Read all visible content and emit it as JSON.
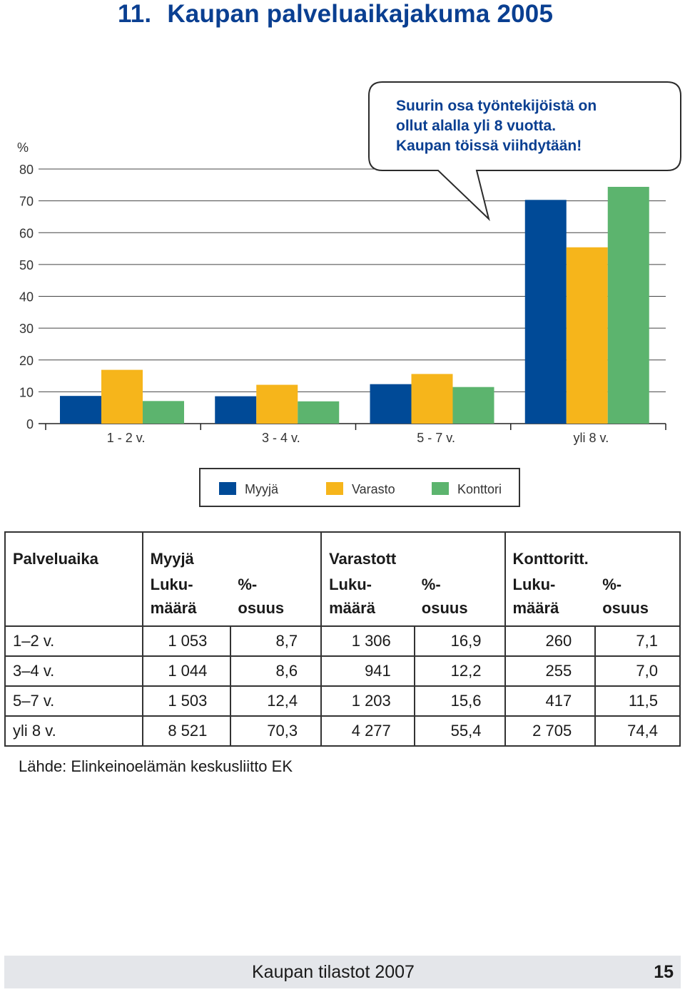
{
  "header": {
    "number": "11.",
    "title": "Kaupan palveluaikajakuma 2005"
  },
  "chart_data": {
    "type": "bar",
    "ylabel": "%",
    "ylim": [
      0,
      80
    ],
    "yticks": [
      0,
      10,
      20,
      30,
      40,
      50,
      60,
      70,
      80
    ],
    "grid": true,
    "categories": [
      "1 - 2 v.",
      "3 - 4 v.",
      "5 - 7 v.",
      "yli 8 v."
    ],
    "series": [
      {
        "name": "Myyjä",
        "color": "#004a97",
        "values": [
          8.7,
          8.6,
          12.4,
          70.3
        ]
      },
      {
        "name": "Varasto",
        "color": "#f6b51b",
        "values": [
          16.9,
          12.2,
          15.6,
          55.4
        ]
      },
      {
        "name": "Konttori",
        "color": "#5cb46e",
        "values": [
          7.1,
          7.0,
          11.5,
          74.4
        ]
      }
    ],
    "annotation": [
      "Suurin osa työntekijöistä on",
      "ollut alalla yli 8 vuotta.",
      "Kaupan töissä viihdytään!"
    ],
    "legend_position": "bottom"
  },
  "table": {
    "col_service": "Palveluaika",
    "groups": [
      "Myyjä",
      "Varastott",
      "Konttoritt."
    ],
    "sub_count": [
      "Luku-",
      "määrä"
    ],
    "sub_pct": [
      "%-",
      "osuus"
    ],
    "rows": [
      {
        "label": "1–2 v.",
        "values": [
          "1 053",
          "8,7",
          "1 306",
          "16,9",
          "260",
          "7,1"
        ]
      },
      {
        "label": "3–4 v.",
        "values": [
          "1 044",
          "8,6",
          "941",
          "12,2",
          "255",
          "7,0"
        ]
      },
      {
        "label": "5–7 v.",
        "values": [
          "1 503",
          "12,4",
          "1 203",
          "15,6",
          "417",
          "11,5"
        ]
      },
      {
        "label": "yli 8 v.",
        "values": [
          "8 521",
          "70,3",
          "4 277",
          "55,4",
          "2 705",
          "74,4"
        ]
      }
    ]
  },
  "source": "Lähde: Elinkeinoelämän keskusliitto EK",
  "footer": {
    "publication": "Kaupan tilastot 2007",
    "page": "15"
  }
}
